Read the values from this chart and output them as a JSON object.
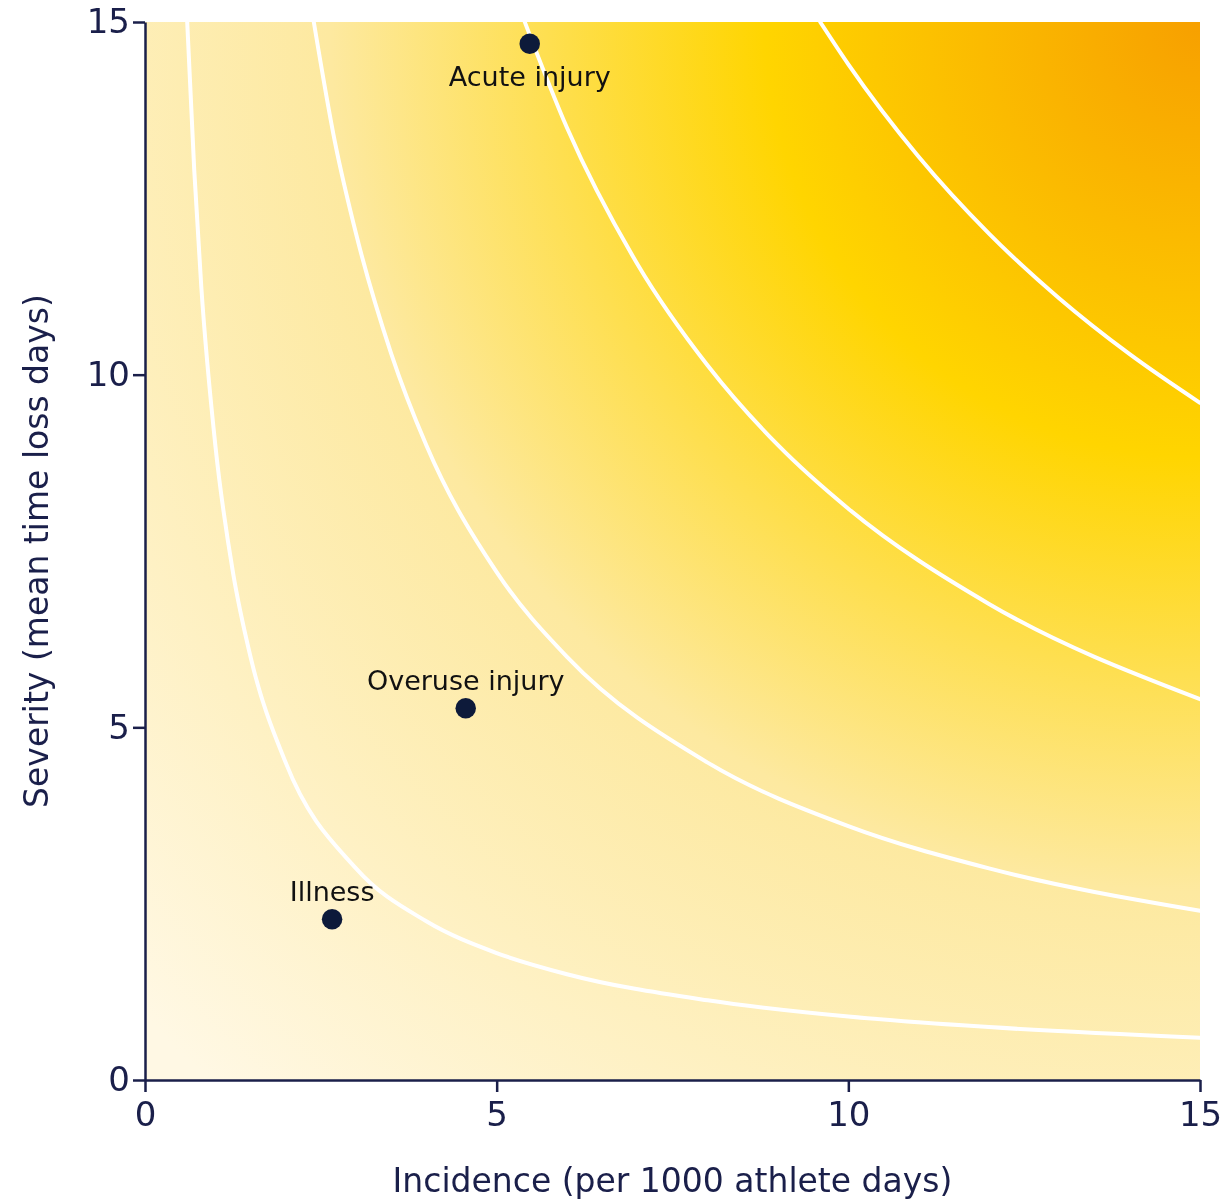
{
  "chart_data": {
    "type": "scatter",
    "xlabel": "Incidence (per 1000 athlete days)",
    "ylabel": "Severity (mean time loss days)",
    "xlim": [
      0,
      15
    ],
    "ylim": [
      0,
      15
    ],
    "xticks": [
      0,
      5,
      10,
      15
    ],
    "yticks": [
      0,
      5,
      10,
      15
    ],
    "grid": false,
    "series": [
      {
        "type": "line",
        "color": "#ffffff",
        "line_style": "solid",
        "x": [
          0.6,
          0.7,
          0.8,
          1,
          1.25,
          1.5,
          2,
          3,
          4,
          5,
          6,
          8,
          10,
          12,
          15
        ],
        "values": [
          15,
          12.9,
          11.25,
          9,
          7.2,
          6,
          4.5,
          3,
          2.25,
          1.8,
          1.5,
          1.13,
          0.9,
          0.75,
          0.6
        ]
      },
      {
        "type": "line",
        "color": "#ffffff",
        "line_style": "solid",
        "x": [
          2.4,
          2.7,
          3,
          3.5,
          4,
          5,
          6,
          8,
          10,
          12,
          15
        ],
        "values": [
          15,
          13.3,
          12,
          10.3,
          9,
          7.2,
          6,
          4.5,
          3.6,
          3,
          2.4
        ]
      },
      {
        "type": "line",
        "color": "#ffffff",
        "line_style": "solid",
        "x": [
          5.4,
          6,
          7,
          8,
          9,
          10,
          12,
          15
        ],
        "values": [
          15,
          13.5,
          11.57,
          10.13,
          9,
          8.1,
          6.75,
          5.4
        ]
      },
      {
        "type": "line",
        "color": "#ffffff",
        "line_style": "solid",
        "x": [
          9.6,
          10,
          11,
          12,
          13,
          14,
          15
        ],
        "values": [
          15,
          14.4,
          13.09,
          12,
          11.08,
          10.29,
          9.6
        ]
      },
      {
        "marker": "circle",
        "color": "#0d1a3a",
        "x": [
          5.47,
          4.56,
          2.66
        ],
        "values": [
          14.69,
          5.27,
          2.28
        ]
      }
    ],
    "annotations": [
      {
        "text": "Acute injury",
        "x": 5.47,
        "y": 14.69
      },
      {
        "text": "Overuse injury",
        "x": 4.56,
        "y": 5.27
      },
      {
        "text": "Illness",
        "x": 2.66,
        "y": 2.28
      }
    ]
  }
}
